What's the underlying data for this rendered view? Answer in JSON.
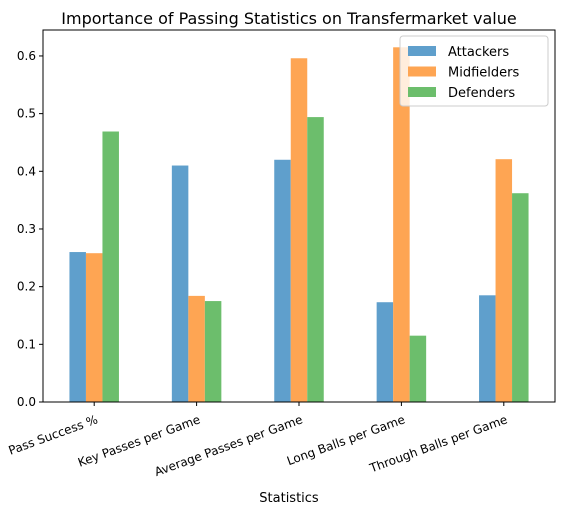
{
  "chart_data": {
    "type": "bar",
    "title": "Importance of Passing Statistics on Transfermarket value",
    "xlabel": "Statistics",
    "ylabel": "",
    "ylim": [
      0,
      0.645
    ],
    "yticks": [
      "0.0",
      "0.1",
      "0.2",
      "0.3",
      "0.4",
      "0.5",
      "0.6"
    ],
    "categories": [
      "Pass Success %",
      "Key Passes per Game",
      "Average Passes per Game",
      "Long Balls per Game",
      "Through Balls per Game"
    ],
    "series": [
      {
        "name": "Attackers",
        "color": "#5f9fcc",
        "values": [
          0.26,
          0.41,
          0.42,
          0.173,
          0.185
        ]
      },
      {
        "name": "Midfielders",
        "color": "#fea553",
        "values": [
          0.258,
          0.184,
          0.596,
          0.615,
          0.421
        ]
      },
      {
        "name": "Defenders",
        "color": "#6cbe6c",
        "values": [
          0.469,
          0.175,
          0.494,
          0.115,
          0.362
        ]
      }
    ],
    "grid": false,
    "legend_position": "top-right",
    "xtick_rotation": "20"
  }
}
